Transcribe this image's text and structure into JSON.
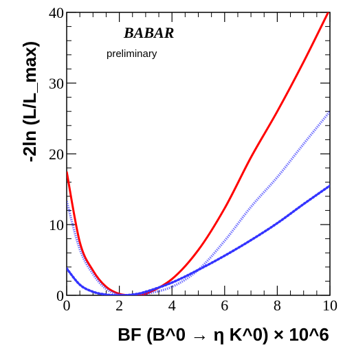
{
  "chart_data": {
    "type": "line",
    "title": "",
    "xlabel": "BF (B^0 → η K^0) × 10^6",
    "ylabel": "-2ln (L/L_max)",
    "xlim": [
      0,
      10
    ],
    "ylim": [
      0,
      40
    ],
    "x_ticks": [
      0,
      2,
      4,
      6,
      8,
      10
    ],
    "y_ticks": [
      0,
      10,
      20,
      30,
      40
    ],
    "grid": false,
    "annotations": {
      "logo": "BABAR",
      "status": "preliminary"
    },
    "series": [
      {
        "color": "#ff0000",
        "style": "solid",
        "x": [
          0,
          0.5,
          1,
          1.5,
          2,
          2.5,
          3,
          4,
          5,
          6,
          7,
          8,
          9,
          10
        ],
        "y": [
          17.5,
          7.5,
          3.5,
          1.2,
          0.2,
          0,
          0.2,
          2.3,
          6.4,
          12.3,
          19.5,
          26.0,
          33.0,
          40.5
        ]
      },
      {
        "color": "#3333ff",
        "style": "hatched",
        "x": [
          0,
          0.5,
          1,
          1.5,
          2,
          2.5,
          3,
          4,
          5,
          6,
          7,
          8,
          9,
          10
        ],
        "y": [
          13.3,
          6.5,
          3.0,
          0.9,
          0.1,
          0,
          0.2,
          1.2,
          3.6,
          7.7,
          12.5,
          16.7,
          21.4,
          26.0
        ]
      },
      {
        "color": "#3333ff",
        "style": "dotted",
        "x": [
          0,
          0.5,
          1,
          1.5,
          2,
          2.5,
          3,
          4,
          5,
          6,
          7,
          8,
          9,
          10
        ],
        "y": [
          3.8,
          1.5,
          0.5,
          0.1,
          0,
          0.1,
          0.5,
          1.8,
          3.6,
          5.6,
          7.8,
          10.2,
          12.9,
          15.5
        ]
      }
    ]
  }
}
